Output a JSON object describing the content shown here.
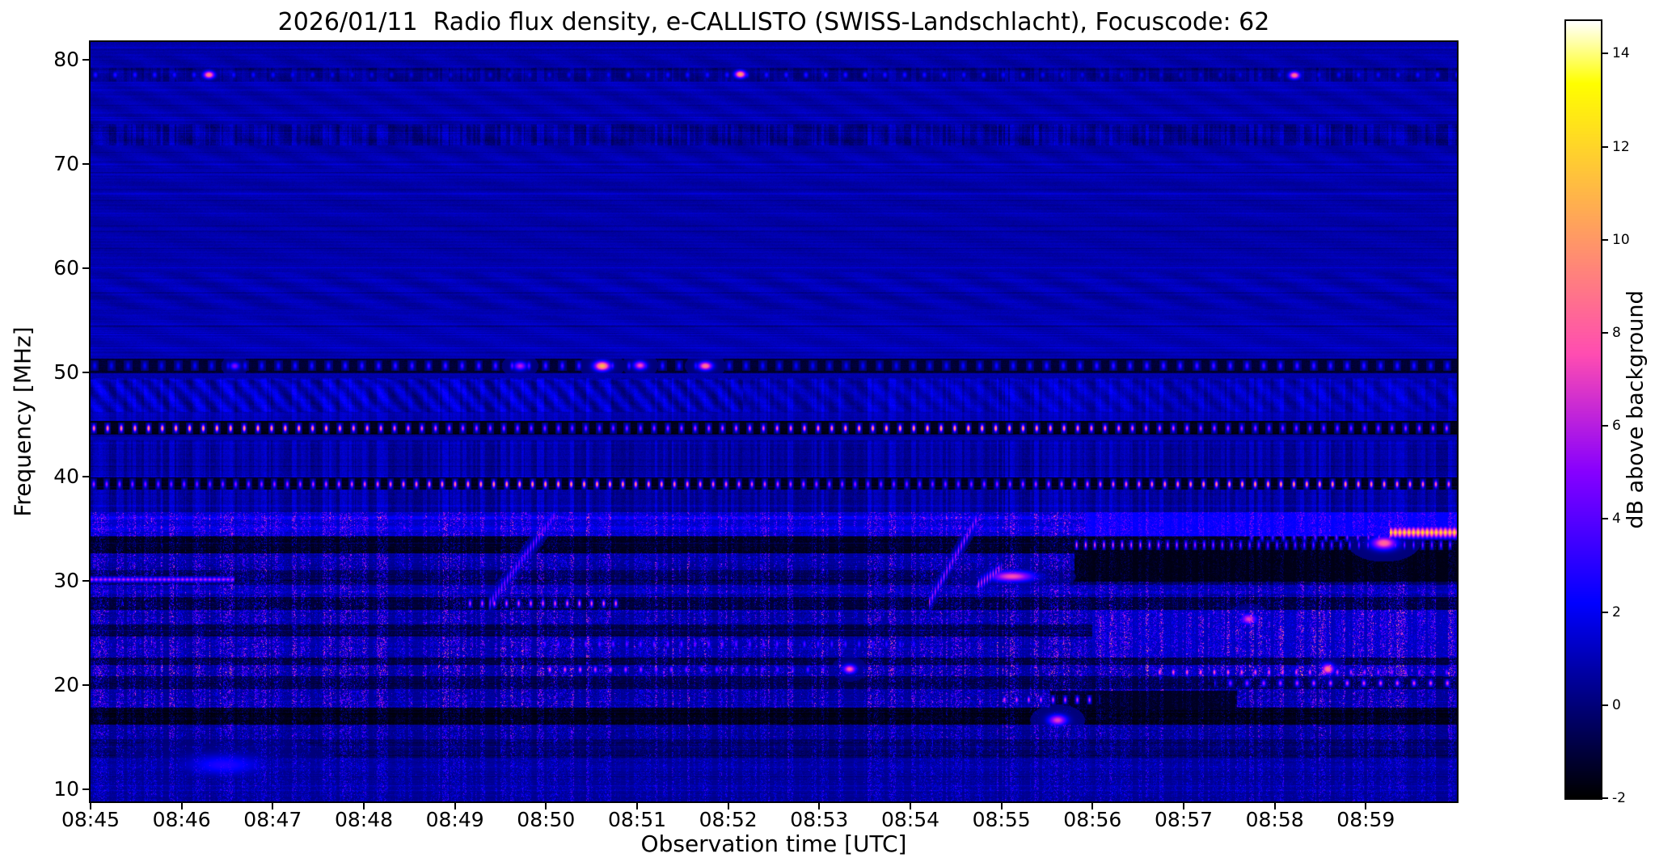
{
  "chart_data": {
    "type": "heatmap",
    "title": "2026/01/11  Radio flux density, e-CALLISTO (SWISS-Landschlacht), Focuscode: 62",
    "xlabel": "Observation time [UTC]",
    "ylabel": "Frequency [MHz]",
    "x_ticks": [
      "08:45",
      "08:46",
      "08:47",
      "08:48",
      "08:49",
      "08:50",
      "08:51",
      "08:52",
      "08:53",
      "08:54",
      "08:55",
      "08:56",
      "08:57",
      "08:58",
      "08:59"
    ],
    "x_span_seconds": 900,
    "y_ticks": [
      80,
      70,
      60,
      50,
      40,
      30,
      20,
      10
    ],
    "ylim": [
      8.8,
      81.7
    ],
    "colorbar": {
      "label": "dB above background",
      "ticks": [
        -2,
        0,
        2,
        4,
        6,
        8,
        10,
        12,
        14
      ],
      "vmin": -2,
      "vmax": 14.7,
      "colormap": "gnuplot2"
    },
    "background_db": 0.9,
    "notable_features": [
      "Dotted orange carrier line near 44.6 MHz across the whole interval inside a dark channel",
      "Dotted orange carrier line near 39.2 MHz across the whole interval inside a dark channel",
      "Dark channel near 50-51 MHz with faint blue dashes and bright orange blobs around 08:50-08:52",
      "Isolated bright dots near 78.5 MHz at about 08:46, 08:52 and 08:58",
      "Black interference-free band near 32.6-34.2 MHz",
      "Bright dashed orange line near 33.4 MHz from about 08:56 to end, black band below it",
      "Strong yellow streak near 34.6 MHz just before 09:00",
      "Pink carrier near 30 MHz at 08:45-08:46",
      "Diagonal drifting features near 08:49:30 and 08:54:15 rising from 28 to 36 MHz",
      "Dense RFI speckle (blue/magenta/orange) below 36 MHz with black quiet rows near 17, 20, 22, 25, 27 and 30 MHz",
      "Faint wavy interference ripples near 46-49, 56-60 and 70-80 MHz"
    ],
    "bands": [
      {
        "f": [
          8.8,
          13.0
        ],
        "base": 0.35,
        "amp": 1.3
      },
      {
        "f": [
          13.0,
          14.8
        ],
        "base": -0.5,
        "amp": 1.5
      },
      {
        "f": [
          14.8,
          16.2
        ],
        "base": 0.2,
        "amp": 2.0
      },
      {
        "f": [
          16.2,
          17.8
        ],
        "base": -1.7,
        "amp": 1.1
      },
      {
        "f": [
          17.8,
          19.6
        ],
        "base": 0.35,
        "amp": 2.6
      },
      {
        "f": [
          19.6,
          20.8
        ],
        "base": -1.0,
        "amp": 1.9
      },
      {
        "f": [
          20.8,
          21.9
        ],
        "base": 0.4,
        "amp": 3.1
      },
      {
        "f": [
          21.9,
          22.6
        ],
        "base": -1.2,
        "amp": 2.0
      },
      {
        "f": [
          22.6,
          24.6
        ],
        "base": 0.5,
        "amp": 2.8
      },
      {
        "f": [
          24.6,
          25.8
        ],
        "base": -1.0,
        "amp": 1.7
      },
      {
        "f": [
          25.8,
          27.2
        ],
        "base": 0.4,
        "amp": 2.6
      },
      {
        "f": [
          27.2,
          28.4
        ],
        "base": -1.2,
        "amp": 2.1
      },
      {
        "f": [
          28.4,
          29.6
        ],
        "base": 0.55,
        "amp": 2.3
      },
      {
        "f": [
          29.6,
          31.0
        ],
        "base": -0.8,
        "amp": 2.1
      },
      {
        "f": [
          31.0,
          32.6
        ],
        "base": 0.3,
        "amp": 2.4
      },
      {
        "f": [
          32.6,
          34.2
        ],
        "base": -1.6,
        "amp": 1.3
      },
      {
        "f": [
          34.2,
          36.6
        ],
        "base": 1.2,
        "amp": 2.2
      },
      {
        "f": [
          36.6,
          38.7
        ],
        "base": 0.55,
        "amp": 1.5,
        "stripe": true
      },
      {
        "f": [
          38.7,
          39.9
        ],
        "base": -1.5,
        "amp": 0.7
      },
      {
        "f": [
          39.9,
          43.5
        ],
        "base": 0.6,
        "amp": 1.3,
        "stripe": true
      },
      {
        "f": [
          43.5,
          44.0
        ],
        "base": 0.85,
        "amp": 0.8
      },
      {
        "f": [
          44.0,
          45.3
        ],
        "base": -1.5,
        "amp": 0.7
      },
      {
        "f": [
          45.3,
          46.2
        ],
        "base": 0.9,
        "amp": 0.9,
        "stripe": true
      },
      {
        "f": [
          46.2,
          49.4
        ],
        "base": 1.0,
        "amp": 1.2,
        "stripe": true
      },
      {
        "f": [
          49.4,
          49.9
        ],
        "base": 0.8,
        "amp": 0.8
      },
      {
        "f": [
          49.9,
          51.3
        ],
        "base": -1.2,
        "amp": 0.8
      },
      {
        "f": [
          51.3,
          56.0
        ],
        "base": 0.95,
        "amp": 0.55
      },
      {
        "f": [
          56.0,
          60.0
        ],
        "base": 0.85,
        "amp": 0.6
      },
      {
        "f": [
          60.0,
          71.8
        ],
        "base": 0.8,
        "amp": 0.55
      },
      {
        "f": [
          71.8,
          73.8
        ],
        "base": 0.45,
        "amp": 1.4,
        "stripe": true
      },
      {
        "f": [
          73.8,
          77.9
        ],
        "base": 0.8,
        "amp": 0.55
      },
      {
        "f": [
          77.9,
          79.2
        ],
        "base": 0.2,
        "amp": 1.0,
        "stripe": true
      },
      {
        "f": [
          79.2,
          81.7
        ],
        "base": 0.8,
        "amp": 0.6
      }
    ],
    "bright_rows": [
      {
        "f": 36.0,
        "hw": 0.16,
        "boost": 0.9
      },
      {
        "f": 35.0,
        "hw": 0.14,
        "boost": 0.5
      },
      {
        "f": 28.95,
        "hw": 0.12,
        "boost": 0.6
      },
      {
        "f": 74.9,
        "hw": 0.1,
        "boost": 0.25
      }
    ],
    "band_overrides": [
      {
        "f": [
          29.9,
          33.2
        ],
        "t": [
          648,
          900
        ],
        "base": -1.7,
        "amp": 0.7
      },
      {
        "f": [
          34.2,
          36.6
        ],
        "t": [
          655,
          900
        ],
        "base": 2.1,
        "amp": 1.4
      },
      {
        "f": [
          17.6,
          19.4
        ],
        "t": [
          632,
          755
        ],
        "base": -1.5,
        "amp": 0.9
      },
      {
        "f": [
          22.6,
          27.2
        ],
        "t": [
          660,
          900
        ],
        "base": 0.9,
        "amp": 3.0
      },
      {
        "f": [
          20.8,
          21.9
        ],
        "t": [
          695,
          900
        ],
        "base": 0.7,
        "amp": 3.4
      }
    ],
    "dashed_lines": [
      {
        "f": 44.62,
        "t": [
          0,
          900
        ],
        "period": 9.0,
        "hw": 0.55,
        "sig": 0.22,
        "lmin": 5.5,
        "lmax": 11.5
      },
      {
        "f": 39.25,
        "t": [
          0,
          900
        ],
        "period": 8.5,
        "hw": 0.55,
        "sig": 0.22,
        "lmin": 5.5,
        "lmax": 11.0
      },
      {
        "f": 50.62,
        "t": [
          0,
          900
        ],
        "period": 11,
        "hw": 0.5,
        "sig": 0.25,
        "lmin": 2.2,
        "lmax": 4.2
      },
      {
        "f": 78.55,
        "t": [
          0,
          900
        ],
        "period": 13,
        "hw": 0.4,
        "sig": 0.2,
        "lmin": 1.8,
        "lmax": 3.2
      },
      {
        "f": 33.42,
        "t": [
          645,
          900
        ],
        "period": 6,
        "hw": 0.5,
        "sig": 0.24,
        "lmin": 5.0,
        "lmax": 9.5
      },
      {
        "f": 27.8,
        "t": [
          245,
          350
        ],
        "period": 8,
        "hw": 0.45,
        "sig": 0.22,
        "lmin": 4.5,
        "lmax": 8.5
      },
      {
        "f": 21.45,
        "t": [
          300,
          485
        ],
        "period": 10,
        "hw": 0.45,
        "sig": 0.22,
        "lmin": 4.5,
        "lmax": 9.5
      },
      {
        "f": 21.2,
        "t": [
          700,
          900
        ],
        "period": 9,
        "hw": 0.45,
        "sig": 0.22,
        "lmin": 4.0,
        "lmax": 8.5
      },
      {
        "f": 20.15,
        "t": [
          740,
          900
        ],
        "period": 11,
        "hw": 0.4,
        "sig": 0.2,
        "lmin": 3.5,
        "lmax": 7.5
      },
      {
        "f": 23.9,
        "t": [
          295,
          545
        ],
        "period": 9,
        "hw": 0.5,
        "sig": 0.25,
        "lmin": 3.0,
        "lmax": 5.0
      },
      {
        "f": 18.55,
        "t": [
          595,
          665
        ],
        "period": 8,
        "hw": 0.45,
        "sig": 0.22,
        "lmin": 4.0,
        "lmax": 7.5
      },
      {
        "f": 34.15,
        "t": [
          760,
          858
        ],
        "period": 7,
        "hw": 0.45,
        "sig": 0.22,
        "lmin": 4.0,
        "lmax": 8.0
      }
    ],
    "blobs": [
      {
        "t": 78,
        "f": 78.55,
        "dt": 3.5,
        "df": 0.35,
        "level": 9.5
      },
      {
        "t": 428,
        "f": 78.6,
        "dt": 3.5,
        "df": 0.35,
        "level": 10.5
      },
      {
        "t": 793,
        "f": 78.5,
        "dt": 3.5,
        "df": 0.35,
        "level": 9.0
      },
      {
        "t": 337,
        "f": 50.6,
        "dt": 5,
        "df": 0.45,
        "level": 11.0
      },
      {
        "t": 283,
        "f": 50.6,
        "dt": 4,
        "df": 0.4,
        "level": 6.0
      },
      {
        "t": 362,
        "f": 50.65,
        "dt": 4,
        "df": 0.4,
        "level": 7.5
      },
      {
        "t": 405,
        "f": 50.6,
        "dt": 4.5,
        "df": 0.4,
        "level": 9.0
      },
      {
        "t": 95,
        "f": 50.6,
        "dt": 3,
        "df": 0.35,
        "level": 5.0
      },
      {
        "t": 637,
        "f": 16.6,
        "dt": 6,
        "df": 0.5,
        "level": 7.0
      },
      {
        "t": 607,
        "f": 30.4,
        "dt": 14,
        "df": 0.5,
        "level": 7.5
      },
      {
        "t": 852,
        "f": 33.6,
        "dt": 8,
        "df": 0.6,
        "level": 8.5
      },
      {
        "t": 88,
        "f": 12.3,
        "dt": 25,
        "df": 1.0,
        "level": 2.8
      },
      {
        "t": 500,
        "f": 21.5,
        "dt": 4,
        "df": 0.4,
        "level": 8.0
      },
      {
        "t": 763,
        "f": 26.3,
        "dt": 5,
        "df": 0.5,
        "level": 7.0
      },
      {
        "t": 815,
        "f": 21.5,
        "dt": 4,
        "df": 0.5,
        "level": 9.0
      }
    ],
    "streaks": [
      {
        "f": 34.62,
        "df": 0.75,
        "t": [
          856,
          900
        ],
        "level": 13.5
      },
      {
        "f": 30.1,
        "df": 0.35,
        "t": [
          0,
          95
        ],
        "level": 7.0
      }
    ],
    "diagonals": [
      {
        "t": [
          262,
          306
        ],
        "fr": [
          27.6,
          36.3
        ],
        "level": 5.5
      },
      {
        "t": [
          552,
          584
        ],
        "fr": [
          27.8,
          36.0
        ],
        "level": 6.5
      },
      {
        "t": [
          584,
          600
        ],
        "fr": [
          29.5,
          31.2
        ],
        "level": 7.0
      }
    ],
    "ripples": [
      {
        "f": [
          46.2,
          49.3
        ],
        "t": [
          0,
          430
        ],
        "amp": 0.75,
        "period": 14
      },
      {
        "f": [
          46.2,
          49.3
        ],
        "t": [
          430,
          900
        ],
        "amp": 0.45,
        "period": 17
      },
      {
        "f": [
          56.0,
          59.6
        ],
        "t": [
          0,
          900
        ],
        "amp": 0.3,
        "period": 47
      },
      {
        "f": [
          69.5,
          80.5
        ],
        "t": [
          0,
          900
        ],
        "amp": 0.22,
        "period": 39
      },
      {
        "f": [
          51.5,
          55.5
        ],
        "t": [
          0,
          900
        ],
        "amp": 0.18,
        "period": 60
      },
      {
        "f": [
          60.5,
          69.0
        ],
        "t": [
          0,
          900
        ],
        "amp": 0.12,
        "period": 75
      }
    ]
  }
}
